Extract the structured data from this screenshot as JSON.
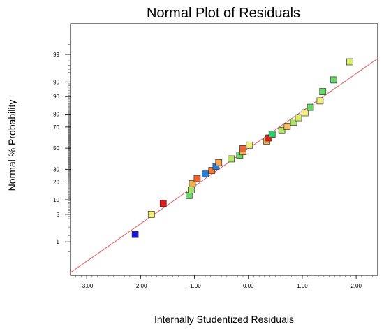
{
  "chart_data": {
    "type": "scatter",
    "title": "Normal Plot of Residuals",
    "xlabel": "Internally Studentized Residuals",
    "ylabel": "Normal % Probability",
    "xlim": [
      -3.3,
      2.4
    ],
    "ylim": [
      0.08,
      99.9
    ],
    "yscale": "normal-probability",
    "grid": false,
    "x_ticks": [
      "-3.00",
      "-2.00",
      "-1.00",
      "0.00",
      "1.00",
      "2.00"
    ],
    "y_ticks": [
      "1",
      "5",
      "10",
      "20",
      "30",
      "50",
      "70",
      "80",
      "90",
      "95",
      "99"
    ],
    "reference_line": {
      "color": "#e8595c",
      "points": [
        [
          -3.3,
          0.1
        ],
        [
          2.4,
          98.7
        ]
      ]
    },
    "points": [
      {
        "x": -2.1,
        "y": 1.6,
        "color": "#1515d6"
      },
      {
        "x": -1.8,
        "y": 5.0,
        "color": "#f1f07d"
      },
      {
        "x": -1.58,
        "y": 8.5,
        "color": "#e8191b"
      },
      {
        "x": -1.1,
        "y": 12.0,
        "color": "#6bd86b"
      },
      {
        "x": -1.06,
        "y": 15.0,
        "color": "#a4e36a"
      },
      {
        "x": -1.04,
        "y": 19.0,
        "color": "#f5b04a"
      },
      {
        "x": -0.95,
        "y": 22.5,
        "color": "#f0642e"
      },
      {
        "x": -0.8,
        "y": 26.0,
        "color": "#1f7fe0"
      },
      {
        "x": -0.68,
        "y": 29.0,
        "color": "#f07a3a"
      },
      {
        "x": -0.6,
        "y": 32.5,
        "color": "#1f7fe0"
      },
      {
        "x": -0.55,
        "y": 36.0,
        "color": "#f5a24a"
      },
      {
        "x": -0.32,
        "y": 39.5,
        "color": "#b0e563"
      },
      {
        "x": -0.16,
        "y": 43.0,
        "color": "#6bd86b"
      },
      {
        "x": -0.1,
        "y": 46.5,
        "color": "#f5b04a"
      },
      {
        "x": -0.1,
        "y": 49.5,
        "color": "#f0642e"
      },
      {
        "x": 0.02,
        "y": 53.0,
        "color": "#f1f07d"
      },
      {
        "x": 0.34,
        "y": 57.0,
        "color": "#f5b04a"
      },
      {
        "x": 0.38,
        "y": 60.0,
        "color": "#e8191b"
      },
      {
        "x": 0.44,
        "y": 63.5,
        "color": "#2fcf6f"
      },
      {
        "x": 0.62,
        "y": 67.0,
        "color": "#b0e563"
      },
      {
        "x": 0.72,
        "y": 70.5,
        "color": "#f5c05a"
      },
      {
        "x": 0.84,
        "y": 74.0,
        "color": "#b0e563"
      },
      {
        "x": 0.93,
        "y": 77.5,
        "color": "#d9ef6c"
      },
      {
        "x": 1.05,
        "y": 81.0,
        "color": "#f1f07d"
      },
      {
        "x": 1.15,
        "y": 84.5,
        "color": "#6bd86b"
      },
      {
        "x": 1.33,
        "y": 88.0,
        "color": "#f1f07d"
      },
      {
        "x": 1.38,
        "y": 92.0,
        "color": "#6bd86b"
      },
      {
        "x": 1.58,
        "y": 95.5,
        "color": "#6bd86b"
      },
      {
        "x": 1.88,
        "y": 98.4,
        "color": "#d9ef6c"
      }
    ]
  }
}
